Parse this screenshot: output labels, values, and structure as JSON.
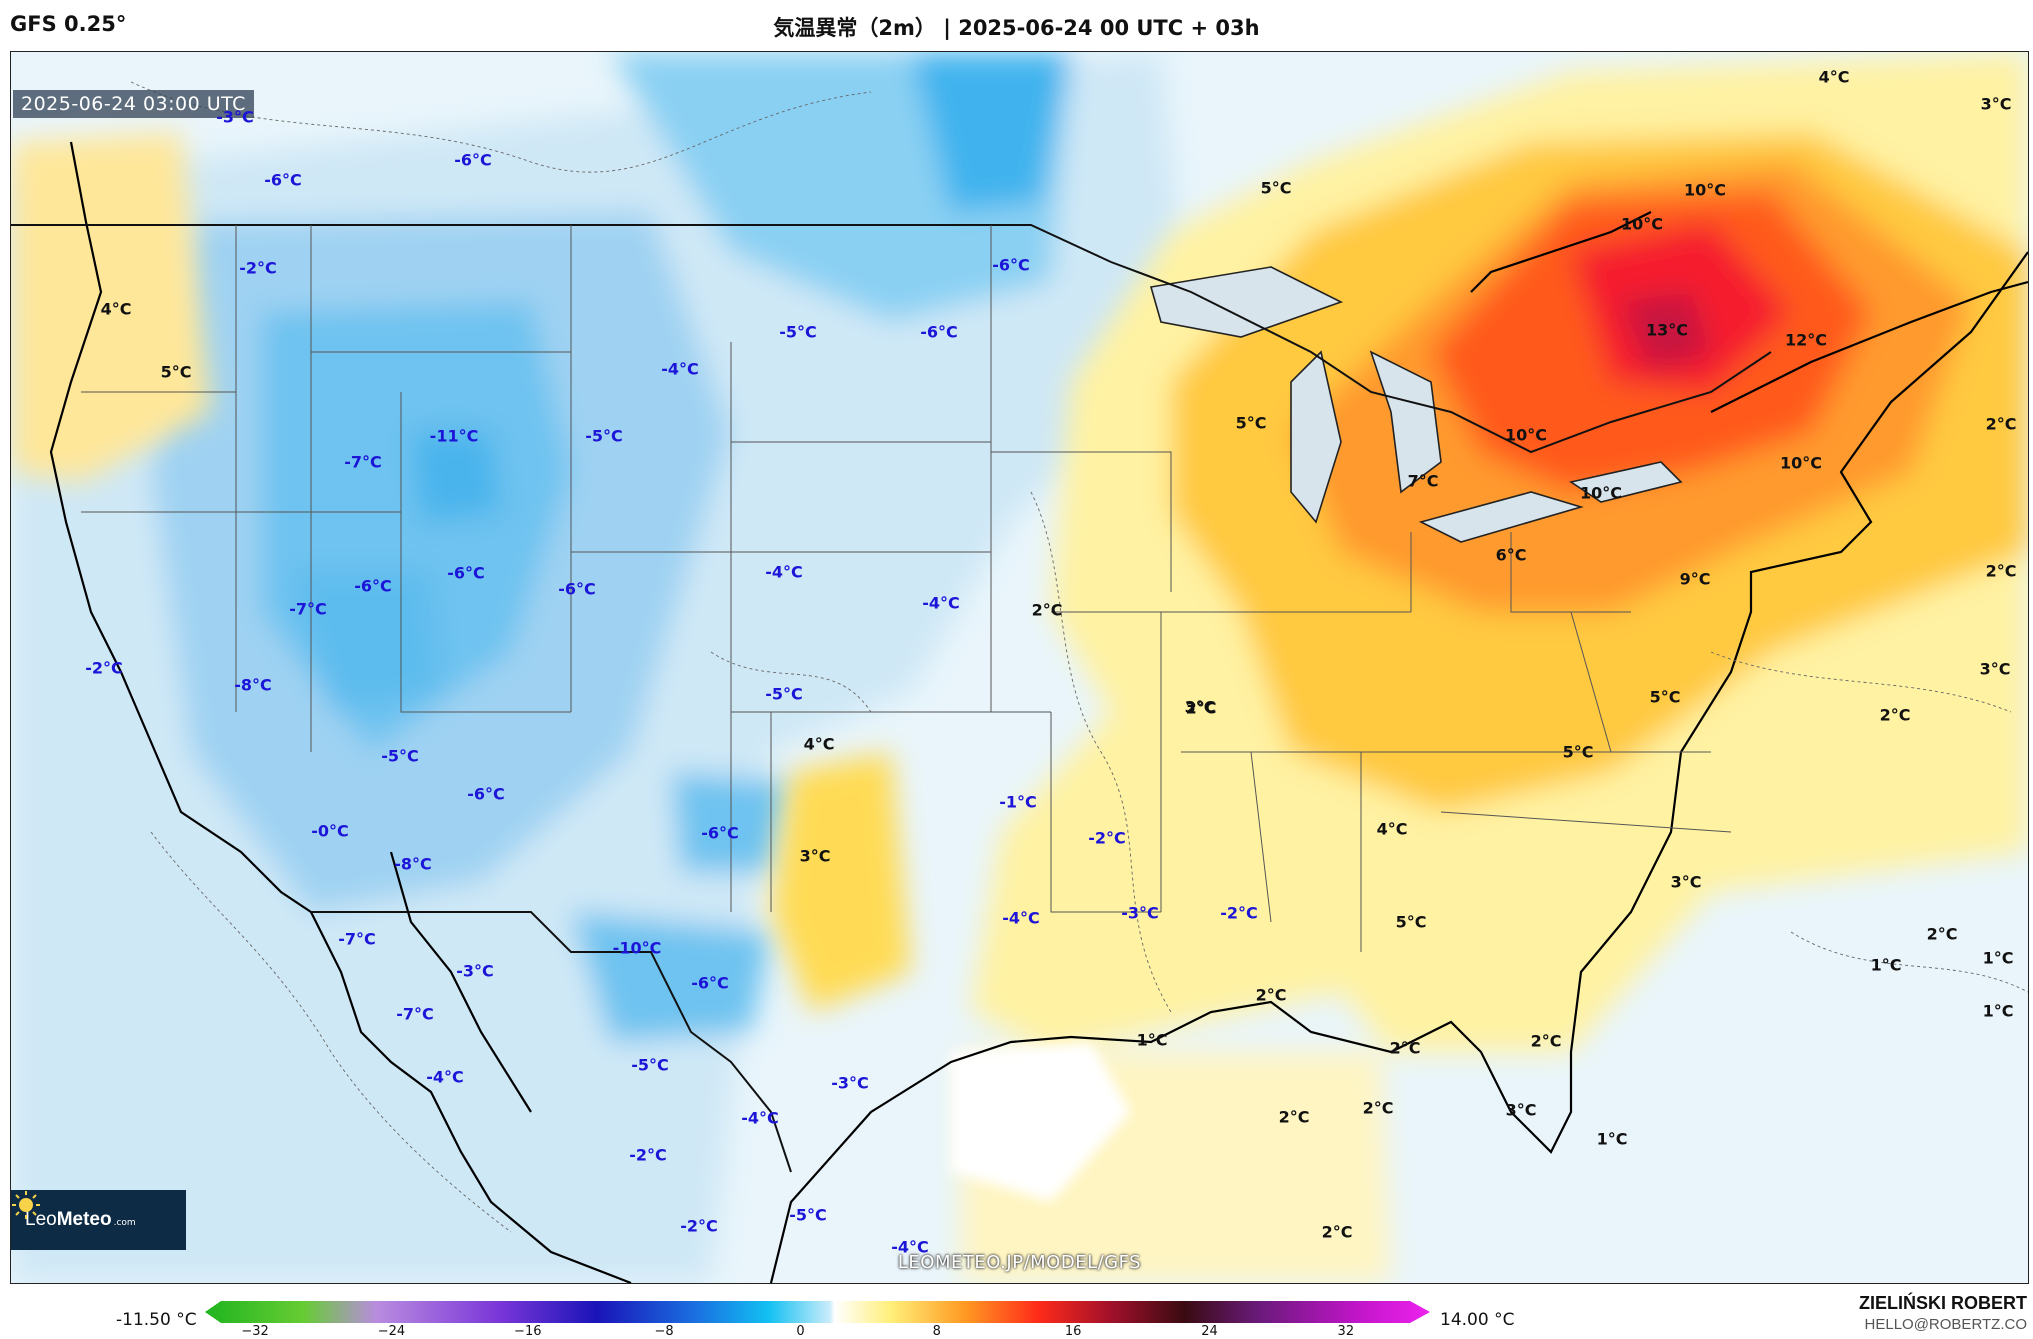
{
  "header": {
    "model": "GFS 0.25°",
    "title": "気温異常（2m） | 2025-06-24 00 UTC + 03h"
  },
  "map": {
    "timestamp": "2025-06-24 03:00 UTC",
    "url": "LEOMETEO.JP/MODEL/GFS",
    "logo": {
      "name_light": "Leo",
      "name_bold": "Meteo",
      "domain": ".com"
    },
    "labels": [
      {
        "text": "-3°C",
        "kind": "cold"
      },
      {
        "text": "-6°C",
        "kind": "cold"
      },
      {
        "text": "-6°C",
        "kind": "cold"
      },
      {
        "text": "-2°C",
        "kind": "cold"
      },
      {
        "text": "4°C",
        "kind": "warm"
      },
      {
        "text": "5°C",
        "kind": "warm"
      },
      {
        "text": "-6°C",
        "kind": "cold"
      },
      {
        "text": "-5°C",
        "kind": "cold"
      },
      {
        "text": "-6°C",
        "kind": "cold"
      },
      {
        "text": "-4°C",
        "kind": "cold"
      },
      {
        "text": "-11°C",
        "kind": "cold"
      },
      {
        "text": "-5°C",
        "kind": "cold"
      },
      {
        "text": "-7°C",
        "kind": "cold"
      },
      {
        "text": "-6°C",
        "kind": "cold"
      },
      {
        "text": "-7°C",
        "kind": "cold"
      },
      {
        "text": "-6°C",
        "kind": "cold"
      },
      {
        "text": "-6°C",
        "kind": "cold"
      },
      {
        "text": "-4°C",
        "kind": "cold"
      },
      {
        "text": "-4°C",
        "kind": "cold"
      },
      {
        "text": "-2°C",
        "kind": "cold"
      },
      {
        "text": "-8°C",
        "kind": "cold"
      },
      {
        "text": "-5°C",
        "kind": "cold"
      },
      {
        "text": "-5°C",
        "kind": "cold"
      },
      {
        "text": "-6°C",
        "kind": "cold"
      },
      {
        "text": "-0°C",
        "kind": "cold"
      },
      {
        "text": "-8°C",
        "kind": "cold"
      },
      {
        "text": "-6°C",
        "kind": "cold"
      },
      {
        "text": "-7°C",
        "kind": "cold"
      },
      {
        "text": "-3°C",
        "kind": "cold"
      },
      {
        "text": "-10°C",
        "kind": "cold"
      },
      {
        "text": "-6°C",
        "kind": "cold"
      },
      {
        "text": "-7°C",
        "kind": "cold"
      },
      {
        "text": "-4°C",
        "kind": "cold"
      },
      {
        "text": "-5°C",
        "kind": "cold"
      },
      {
        "text": "-3°C",
        "kind": "cold"
      },
      {
        "text": "-4°C",
        "kind": "cold"
      },
      {
        "text": "-2°C",
        "kind": "cold"
      },
      {
        "text": "-2°C",
        "kind": "cold"
      },
      {
        "text": "-5°C",
        "kind": "cold"
      },
      {
        "text": "-4°C",
        "kind": "cold"
      },
      {
        "text": "-1°C",
        "kind": "cold"
      },
      {
        "text": "-2°C",
        "kind": "cold"
      },
      {
        "text": "-4°C",
        "kind": "cold"
      },
      {
        "text": "-3°C",
        "kind": "cold"
      },
      {
        "text": "-2°C",
        "kind": "cold"
      },
      {
        "text": "3°C",
        "kind": "warm"
      },
      {
        "text": "4°C",
        "kind": "warm"
      },
      {
        "text": "3°C",
        "kind": "warm"
      },
      {
        "text": "2°C",
        "kind": "warm"
      },
      {
        "text": "2°C",
        "kind": "warm"
      },
      {
        "text": "5°C",
        "kind": "warm"
      },
      {
        "text": "5°C",
        "kind": "warm"
      },
      {
        "text": "10°C",
        "kind": "warm"
      },
      {
        "text": "10°C",
        "kind": "warm"
      },
      {
        "text": "13°C",
        "kind": "warm"
      },
      {
        "text": "12°C",
        "kind": "warm"
      },
      {
        "text": "10°C",
        "kind": "warm"
      },
      {
        "text": "10°C",
        "kind": "warm"
      },
      {
        "text": "7°C",
        "kind": "warm"
      },
      {
        "text": "10°C",
        "kind": "warm"
      },
      {
        "text": "6°C",
        "kind": "warm"
      },
      {
        "text": "9°C",
        "kind": "warm"
      },
      {
        "text": "5°C",
        "kind": "warm"
      },
      {
        "text": "5°C",
        "kind": "warm"
      },
      {
        "text": "4°C",
        "kind": "warm"
      },
      {
        "text": "5°C",
        "kind": "warm"
      },
      {
        "text": "3°C",
        "kind": "warm"
      },
      {
        "text": "2°C",
        "kind": "warm"
      },
      {
        "text": "2°C",
        "kind": "warm"
      },
      {
        "text": "1°C",
        "kind": "warm"
      },
      {
        "text": "2°C",
        "kind": "warm"
      },
      {
        "text": "2°C",
        "kind": "warm"
      },
      {
        "text": "2°C",
        "kind": "warm"
      },
      {
        "text": "3°C",
        "kind": "warm"
      },
      {
        "text": "1°C",
        "kind": "warm"
      },
      {
        "text": "2°C",
        "kind": "warm"
      },
      {
        "text": "4°C",
        "kind": "warm"
      },
      {
        "text": "3°C",
        "kind": "warm"
      },
      {
        "text": "2°C",
        "kind": "warm"
      },
      {
        "text": "2°C",
        "kind": "warm"
      },
      {
        "text": "3°C",
        "kind": "warm"
      },
      {
        "text": "2°C",
        "kind": "warm"
      },
      {
        "text": "2°C",
        "kind": "warm"
      },
      {
        "text": "1°C",
        "kind": "warm"
      },
      {
        "text": "1°C",
        "kind": "warm"
      },
      {
        "text": "1°C",
        "kind": "warm"
      }
    ]
  },
  "colorbar": {
    "min_label": "-11.50 °C",
    "max_label": "14.00 °C",
    "ticks": [
      "−32",
      "−24",
      "−16",
      "−8",
      "0",
      "8",
      "16",
      "24",
      "32"
    ],
    "range": [
      -34,
      36
    ]
  },
  "footer": {
    "author": "ZIELIŃSKI ROBERT",
    "email": "HELLO@ROBERTZ.CO"
  },
  "colors": {
    "cold_label": "#1c15d8",
    "warm_label": "#111111",
    "ocean_neutral": "#ffffff"
  }
}
